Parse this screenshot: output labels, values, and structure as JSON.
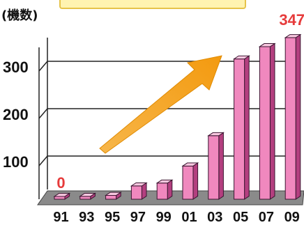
{
  "chart_data": {
    "type": "bar",
    "title": "",
    "unit_label": "(機数)",
    "xlabel": "",
    "ylabel": "",
    "categories": [
      "91",
      "93",
      "95",
      "97",
      "99",
      "01",
      "03",
      "05",
      "07",
      "09"
    ],
    "values": [
      0,
      12,
      14,
      34,
      40,
      76,
      140,
      302,
      328,
      347
    ],
    "ylim": [
      0,
      350
    ],
    "yticks": [
      100,
      200,
      300
    ],
    "data_labels": [
      {
        "category": "91",
        "text": "0"
      },
      {
        "category": "09",
        "text": "347"
      }
    ],
    "grid": true,
    "legend": "none",
    "annotation": "orange upward-trend arrow",
    "colors": {
      "bar_front": "#f088be",
      "bar_side": "#b33f7f",
      "bar_top": "#f9c8e0",
      "floor": "#8a8a8a",
      "gridline": "#222222",
      "data_label": "#e63b3b",
      "arrow": "#f5a21b"
    }
  }
}
